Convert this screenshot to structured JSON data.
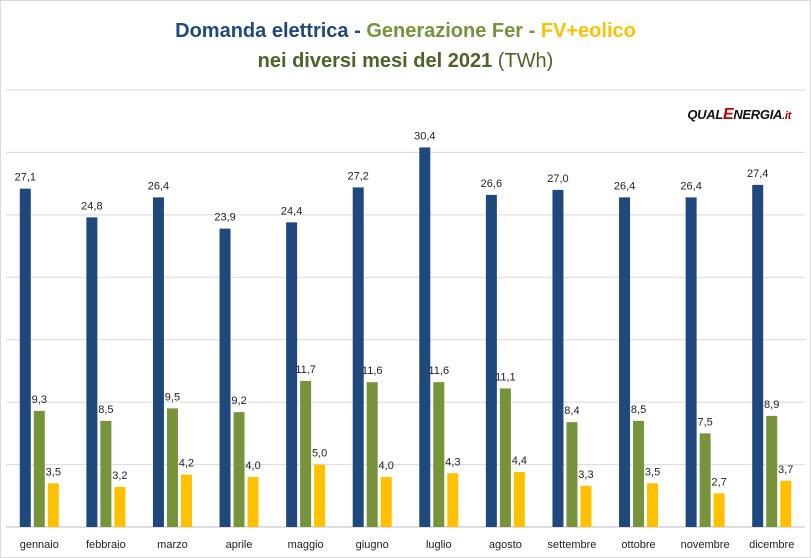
{
  "title": {
    "part1": "Domanda elettrica",
    "sep1": " - ",
    "part2": "Generazione Fer",
    "sep2": " - ",
    "part3": "FV+eolico",
    "line2": "nei diversi mesi del 2021",
    "unit": "(TWh)"
  },
  "logo": {
    "part1": "QUAL",
    "part2": "E",
    "part3": "NERGIA",
    "part4": ".it"
  },
  "colors": {
    "domanda": "#1f497d",
    "fer": "#77933c",
    "fv": "#ffc000",
    "title_blue": "#1f497d",
    "title_green": "#77933c",
    "title_yellow": "#ffc000",
    "grid": "#d9d9d9"
  },
  "chart_data": {
    "type": "bar",
    "title": "Domanda elettrica - Generazione Fer - FV+eolico nei diversi mesi del 2021 (TWh)",
    "categories": [
      "gennaio",
      "febbraio",
      "marzo",
      "aprile",
      "maggio",
      "giugno",
      "luglio",
      "agosto",
      "settembre",
      "ottobre",
      "novembre",
      "dicembre"
    ],
    "series": [
      {
        "name": "Domanda elettrica",
        "values": [
          27.1,
          24.8,
          26.4,
          23.9,
          24.4,
          27.2,
          30.4,
          26.6,
          27.0,
          26.4,
          26.4,
          27.4
        ],
        "labels": [
          "27,1",
          "24,8",
          "26,4",
          "23,9",
          "24,4",
          "27,2",
          "30,4",
          "26,6",
          "27,0",
          "26,4",
          "26,4",
          "27,4"
        ]
      },
      {
        "name": "Generazione Fer",
        "values": [
          9.3,
          8.5,
          9.5,
          9.2,
          11.7,
          11.6,
          11.6,
          11.1,
          8.4,
          8.5,
          7.5,
          8.9
        ],
        "labels": [
          "9,3",
          "8,5",
          "9,5",
          "9,2",
          "11,7",
          "11,6",
          "11,6",
          "11,1",
          "8,4",
          "8,5",
          "7,5",
          "8,9"
        ]
      },
      {
        "name": "FV+eolico",
        "values": [
          3.5,
          3.2,
          4.2,
          4.0,
          5.0,
          4.0,
          4.3,
          4.4,
          3.3,
          3.5,
          2.7,
          3.7
        ],
        "labels": [
          "3,5",
          "3,2",
          "4,2",
          "4,0",
          "5,0",
          "4,0",
          "4,3",
          "4,4",
          "3,3",
          "3,5",
          "2,7",
          "3,7"
        ]
      }
    ],
    "ylim": [
      0,
      35
    ],
    "grid": true,
    "legend": "none"
  }
}
